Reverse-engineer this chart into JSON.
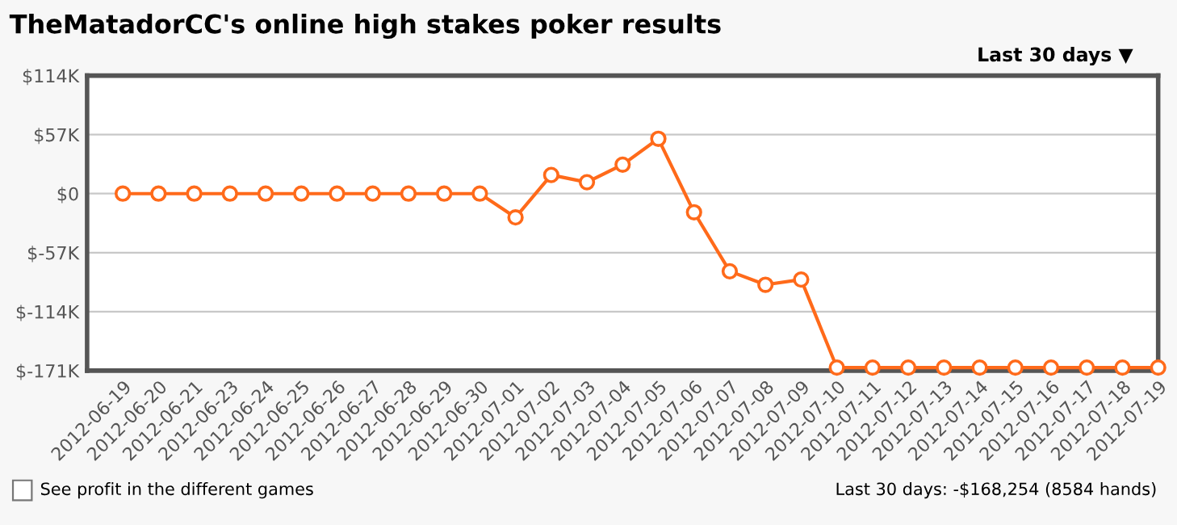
{
  "chart_data": {
    "type": "line",
    "title": "TheMatadorCC's online high stakes poker results",
    "categories": [
      "2012-06-19",
      "2012-06-20",
      "2012-06-21",
      "2012-06-23",
      "2012-06-24",
      "2012-06-25",
      "2012-06-26",
      "2012-06-27",
      "2012-06-28",
      "2012-06-29",
      "2012-06-30",
      "2012-07-01",
      "2012-07-02",
      "2012-07-03",
      "2012-07-04",
      "2012-07-05",
      "2012-07-06",
      "2012-07-07",
      "2012-07-08",
      "2012-07-09",
      "2012-07-10",
      "2012-07-11",
      "2012-07-12",
      "2012-07-13",
      "2012-07-14",
      "2012-07-15",
      "2012-07-16",
      "2012-07-17",
      "2012-07-18",
      "2012-07-19"
    ],
    "series": [
      {
        "color": "#ff6a1a",
        "values": [
          0,
          0,
          0,
          0,
          0,
          0,
          0,
          0,
          0,
          0,
          0,
          -23,
          18,
          11,
          28,
          53,
          -18,
          -75,
          -88,
          -83,
          -168,
          -168,
          -168,
          -168,
          -168,
          -168,
          -168,
          -168,
          -168,
          -168
        ]
      }
    ],
    "ylim": [
      -171,
      114
    ],
    "yticks": [
      {
        "value": -171,
        "label": "$-171K"
      },
      {
        "value": -114,
        "label": "$-114K"
      },
      {
        "value": -57,
        "label": "$-57K"
      },
      {
        "value": 0,
        "label": "$0"
      },
      {
        "value": 57,
        "label": "$57K"
      },
      {
        "value": 114,
        "label": "$114K"
      }
    ],
    "grid": "y",
    "marker": "circle",
    "line_style": "solid",
    "legend": false,
    "annotations": [
      "Last 30 days ▼",
      "See profit in the different games",
      "Last 30 days: -$168,254 (8584 hands)"
    ]
  }
}
